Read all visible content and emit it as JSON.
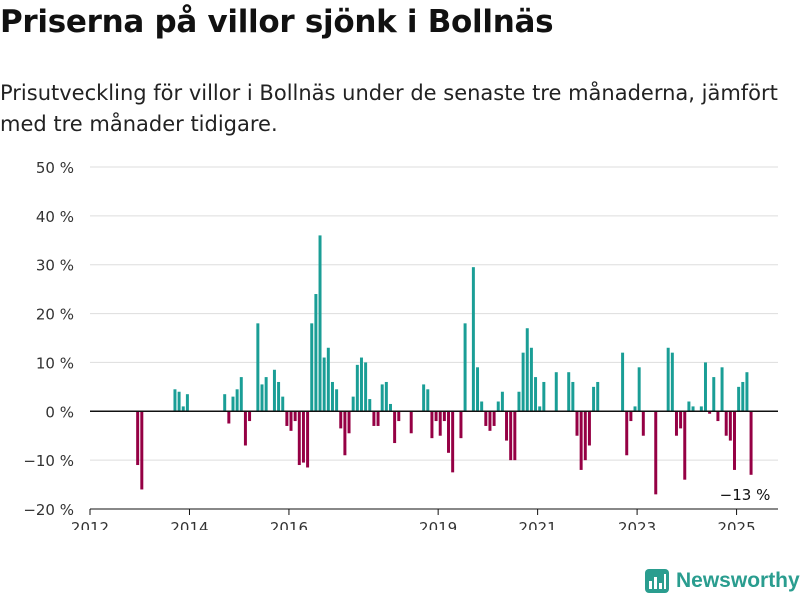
{
  "page": {
    "title": "Priserna på villor sjönk i Bollnäs",
    "subtitle": "Prisutveckling för villor i Bollnäs under de senaste tre månaderna, jämfört med tre månader tidigare.",
    "brand": "Newsworthy"
  },
  "colors": {
    "positive": "#1a9e96",
    "negative": "#950044",
    "grid": "#dddddd",
    "axis": "#111111"
  },
  "chart_data": {
    "type": "bar",
    "ylim": [
      -20,
      50
    ],
    "yticks": [
      -20,
      -10,
      0,
      10,
      20,
      30,
      40,
      50
    ],
    "ytick_labels": [
      "−20 %",
      "−10 %",
      "0 %",
      "10 %",
      "20 %",
      "30 %",
      "40 %",
      "50 %"
    ],
    "xlim": [
      2012,
      2025.833
    ],
    "xticks": [
      {
        "value": 2012,
        "label": "2012"
      },
      {
        "value": 2014,
        "label": "2014"
      },
      {
        "value": 2016,
        "label": "2016"
      },
      {
        "value": 2019,
        "label": "2019"
      },
      {
        "value": 2021,
        "label": "2021"
      },
      {
        "value": 2023,
        "label": "2023"
      },
      {
        "value": 2025,
        "label": "2025"
      }
    ],
    "last_value_label": "−13 %",
    "grid": true,
    "series": [
      {
        "data": [
          {
            "x": "2012-12",
            "y": -11
          },
          {
            "x": "2013-01",
            "y": -16
          },
          {
            "x": "2013-09",
            "y": 4.5
          },
          {
            "x": "2013-10",
            "y": 4
          },
          {
            "x": "2013-11",
            "y": 1
          },
          {
            "x": "2013-12",
            "y": 3.5
          },
          {
            "x": "2014-09",
            "y": 3.5
          },
          {
            "x": "2014-10",
            "y": -2.5
          },
          {
            "x": "2014-11",
            "y": 3
          },
          {
            "x": "2014-12",
            "y": 4.5
          },
          {
            "x": "2015-01",
            "y": 7
          },
          {
            "x": "2015-02",
            "y": -7
          },
          {
            "x": "2015-03",
            "y": -2
          },
          {
            "x": "2015-05",
            "y": 18
          },
          {
            "x": "2015-06",
            "y": 5.5
          },
          {
            "x": "2015-07",
            "y": 7
          },
          {
            "x": "2015-09",
            "y": 8.5
          },
          {
            "x": "2015-10",
            "y": 6
          },
          {
            "x": "2015-11",
            "y": 3
          },
          {
            "x": "2015-12",
            "y": -3
          },
          {
            "x": "2016-01",
            "y": -4
          },
          {
            "x": "2016-02",
            "y": -2
          },
          {
            "x": "2016-03",
            "y": -11
          },
          {
            "x": "2016-04",
            "y": -10.5
          },
          {
            "x": "2016-05",
            "y": -11.5
          },
          {
            "x": "2016-06",
            "y": 18
          },
          {
            "x": "2016-07",
            "y": 24
          },
          {
            "x": "2016-08",
            "y": 36
          },
          {
            "x": "2016-09",
            "y": 11
          },
          {
            "x": "2016-10",
            "y": 13
          },
          {
            "x": "2016-11",
            "y": 6
          },
          {
            "x": "2016-12",
            "y": 4.5
          },
          {
            "x": "2017-01",
            "y": -3.5
          },
          {
            "x": "2017-02",
            "y": -9
          },
          {
            "x": "2017-03",
            "y": -4.5
          },
          {
            "x": "2017-04",
            "y": 3
          },
          {
            "x": "2017-05",
            "y": 9.5
          },
          {
            "x": "2017-06",
            "y": 11
          },
          {
            "x": "2017-07",
            "y": 10
          },
          {
            "x": "2017-08",
            "y": 2.5
          },
          {
            "x": "2017-09",
            "y": -3
          },
          {
            "x": "2017-10",
            "y": -3
          },
          {
            "x": "2017-11",
            "y": 5.5
          },
          {
            "x": "2017-12",
            "y": 6
          },
          {
            "x": "2018-01",
            "y": 1.5
          },
          {
            "x": "2018-02",
            "y": -6.5
          },
          {
            "x": "2018-03",
            "y": -2
          },
          {
            "x": "2018-06",
            "y": -4.5
          },
          {
            "x": "2018-09",
            "y": 5.5
          },
          {
            "x": "2018-10",
            "y": 4.5
          },
          {
            "x": "2018-11",
            "y": -5.5
          },
          {
            "x": "2018-12",
            "y": -2
          },
          {
            "x": "2019-01",
            "y": -5
          },
          {
            "x": "2019-02",
            "y": -2
          },
          {
            "x": "2019-03",
            "y": -8.5
          },
          {
            "x": "2019-04",
            "y": -12.5
          },
          {
            "x": "2019-06",
            "y": -5.5
          },
          {
            "x": "2019-07",
            "y": 18
          },
          {
            "x": "2019-09",
            "y": 29.5
          },
          {
            "x": "2019-10",
            "y": 9
          },
          {
            "x": "2019-11",
            "y": 2
          },
          {
            "x": "2019-12",
            "y": -3
          },
          {
            "x": "2020-01",
            "y": -4
          },
          {
            "x": "2020-02",
            "y": -3
          },
          {
            "x": "2020-03",
            "y": 2
          },
          {
            "x": "2020-04",
            "y": 4
          },
          {
            "x": "2020-05",
            "y": -6
          },
          {
            "x": "2020-06",
            "y": -10
          },
          {
            "x": "2020-07",
            "y": -10
          },
          {
            "x": "2020-08",
            "y": 4
          },
          {
            "x": "2020-09",
            "y": 12
          },
          {
            "x": "2020-10",
            "y": 17
          },
          {
            "x": "2020-11",
            "y": 13
          },
          {
            "x": "2020-12",
            "y": 7
          },
          {
            "x": "2021-01",
            "y": 1
          },
          {
            "x": "2021-02",
            "y": 6
          },
          {
            "x": "2021-05",
            "y": 8
          },
          {
            "x": "2021-08",
            "y": 8
          },
          {
            "x": "2021-09",
            "y": 6
          },
          {
            "x": "2021-10",
            "y": -5
          },
          {
            "x": "2021-11",
            "y": -12
          },
          {
            "x": "2021-12",
            "y": -10
          },
          {
            "x": "2022-01",
            "y": -7
          },
          {
            "x": "2022-02",
            "y": 5
          },
          {
            "x": "2022-03",
            "y": 6
          },
          {
            "x": "2022-09",
            "y": 12
          },
          {
            "x": "2022-10",
            "y": -9
          },
          {
            "x": "2022-11",
            "y": -2
          },
          {
            "x": "2022-12",
            "y": 1
          },
          {
            "x": "2023-01",
            "y": 9
          },
          {
            "x": "2023-02",
            "y": -5
          },
          {
            "x": "2023-05",
            "y": -17
          },
          {
            "x": "2023-08",
            "y": 13
          },
          {
            "x": "2023-09",
            "y": 12
          },
          {
            "x": "2023-10",
            "y": -5
          },
          {
            "x": "2023-11",
            "y": -3.5
          },
          {
            "x": "2023-12",
            "y": -14
          },
          {
            "x": "2024-01",
            "y": 2
          },
          {
            "x": "2024-02",
            "y": 1
          },
          {
            "x": "2024-04",
            "y": 1
          },
          {
            "x": "2024-05",
            "y": 10
          },
          {
            "x": "2024-06",
            "y": -0.5
          },
          {
            "x": "2024-07",
            "y": 7
          },
          {
            "x": "2024-08",
            "y": -2
          },
          {
            "x": "2024-09",
            "y": 9
          },
          {
            "x": "2024-10",
            "y": -5
          },
          {
            "x": "2024-11",
            "y": -6
          },
          {
            "x": "2024-12",
            "y": -12
          },
          {
            "x": "2025-01",
            "y": 5
          },
          {
            "x": "2025-02",
            "y": 6
          },
          {
            "x": "2025-03",
            "y": 8
          },
          {
            "x": "2025-04",
            "y": -13
          }
        ]
      }
    ]
  }
}
